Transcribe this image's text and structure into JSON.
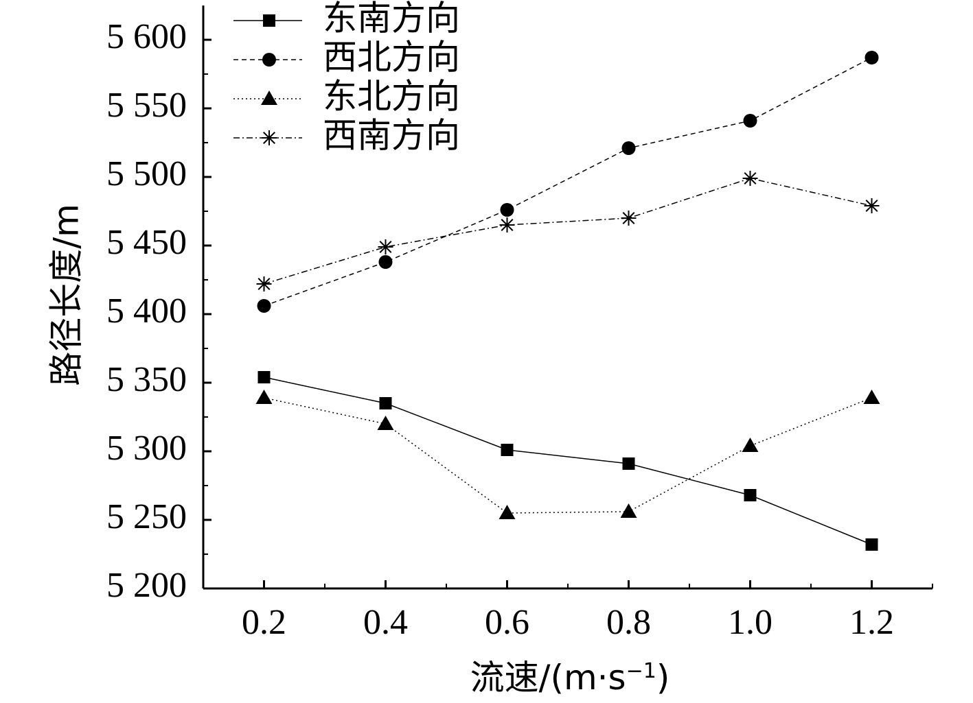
{
  "chart_data": {
    "type": "line",
    "title": "",
    "xlabel": "流速/(m·s",
    "xlabel_sup": "−1",
    "xlabel_close": ")",
    "ylabel": "路径长度/m",
    "x": [
      0.2,
      0.4,
      0.6,
      0.8,
      1.0,
      1.2
    ],
    "x_tick_labels": [
      "0.2",
      "0.4",
      "0.6",
      "0.8",
      "1.0",
      "1.2"
    ],
    "y_tick_values": [
      5200,
      5250,
      5300,
      5350,
      5400,
      5450,
      5500,
      5550,
      5600
    ],
    "y_tick_labels": [
      "5 200",
      "5 250",
      "5 300",
      "5 350",
      "5 400",
      "5 450",
      "5 500",
      "5 550",
      "5 600"
    ],
    "xlim": [
      0.1,
      1.3
    ],
    "ylim": [
      5200,
      5625
    ],
    "grid": false,
    "legend_position": "top-left",
    "series": [
      {
        "name": "东南方向",
        "marker": "square",
        "line": "solid",
        "values": [
          5354,
          5335,
          5301,
          5291,
          5268,
          5232
        ]
      },
      {
        "name": "西北方向",
        "marker": "circle",
        "line": "dashed",
        "values": [
          5406,
          5438,
          5476,
          5521,
          5541,
          5587
        ]
      },
      {
        "name": "东北方向",
        "marker": "triangle",
        "line": "dotted",
        "values": [
          5339,
          5320,
          5255,
          5256,
          5304,
          5339
        ]
      },
      {
        "name": "西南方向",
        "marker": "asterisk",
        "line": "dashdot",
        "values": [
          5422,
          5449,
          5465,
          5470,
          5499,
          5479
        ]
      }
    ]
  }
}
